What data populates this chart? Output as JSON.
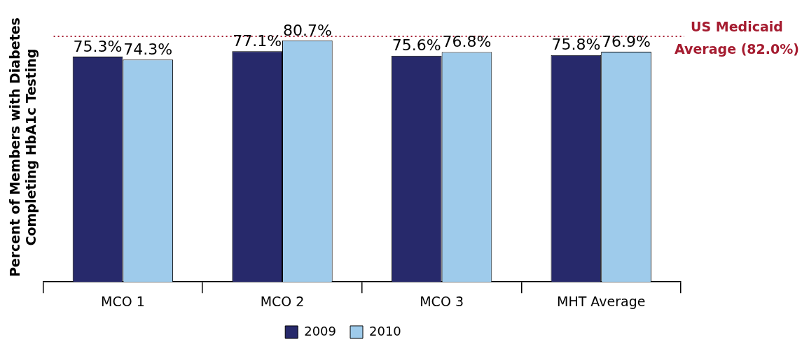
{
  "chart_data": {
    "type": "bar",
    "ylabel": "Percent of Members with Diabetes Completing HbA1c Testing",
    "categories": [
      "MCO 1",
      "MCO 2",
      "MCO 3",
      "MHT Average"
    ],
    "series": [
      {
        "name": "2009",
        "color": "#27296b",
        "values": [
          75.3,
          77.1,
          75.6,
          75.8
        ],
        "value_labels": [
          "75.3%",
          "77.1%",
          "75.6%",
          "75.8%"
        ]
      },
      {
        "name": "2010",
        "color": "#9ecbeb",
        "values": [
          74.3,
          80.7,
          76.8,
          76.9
        ],
        "value_labels": [
          "74.3%",
          "80.7%",
          "76.8%",
          "76.9%"
        ]
      }
    ],
    "tick_labels": "x",
    "grid": false,
    "legend": "bottom",
    "ref_lines": [
      {
        "axis": "y",
        "value": 82.0,
        "label": "US Medicaid Average (82.0%)",
        "color": "#a51c30",
        "line_style": "dotted"
      }
    ]
  }
}
